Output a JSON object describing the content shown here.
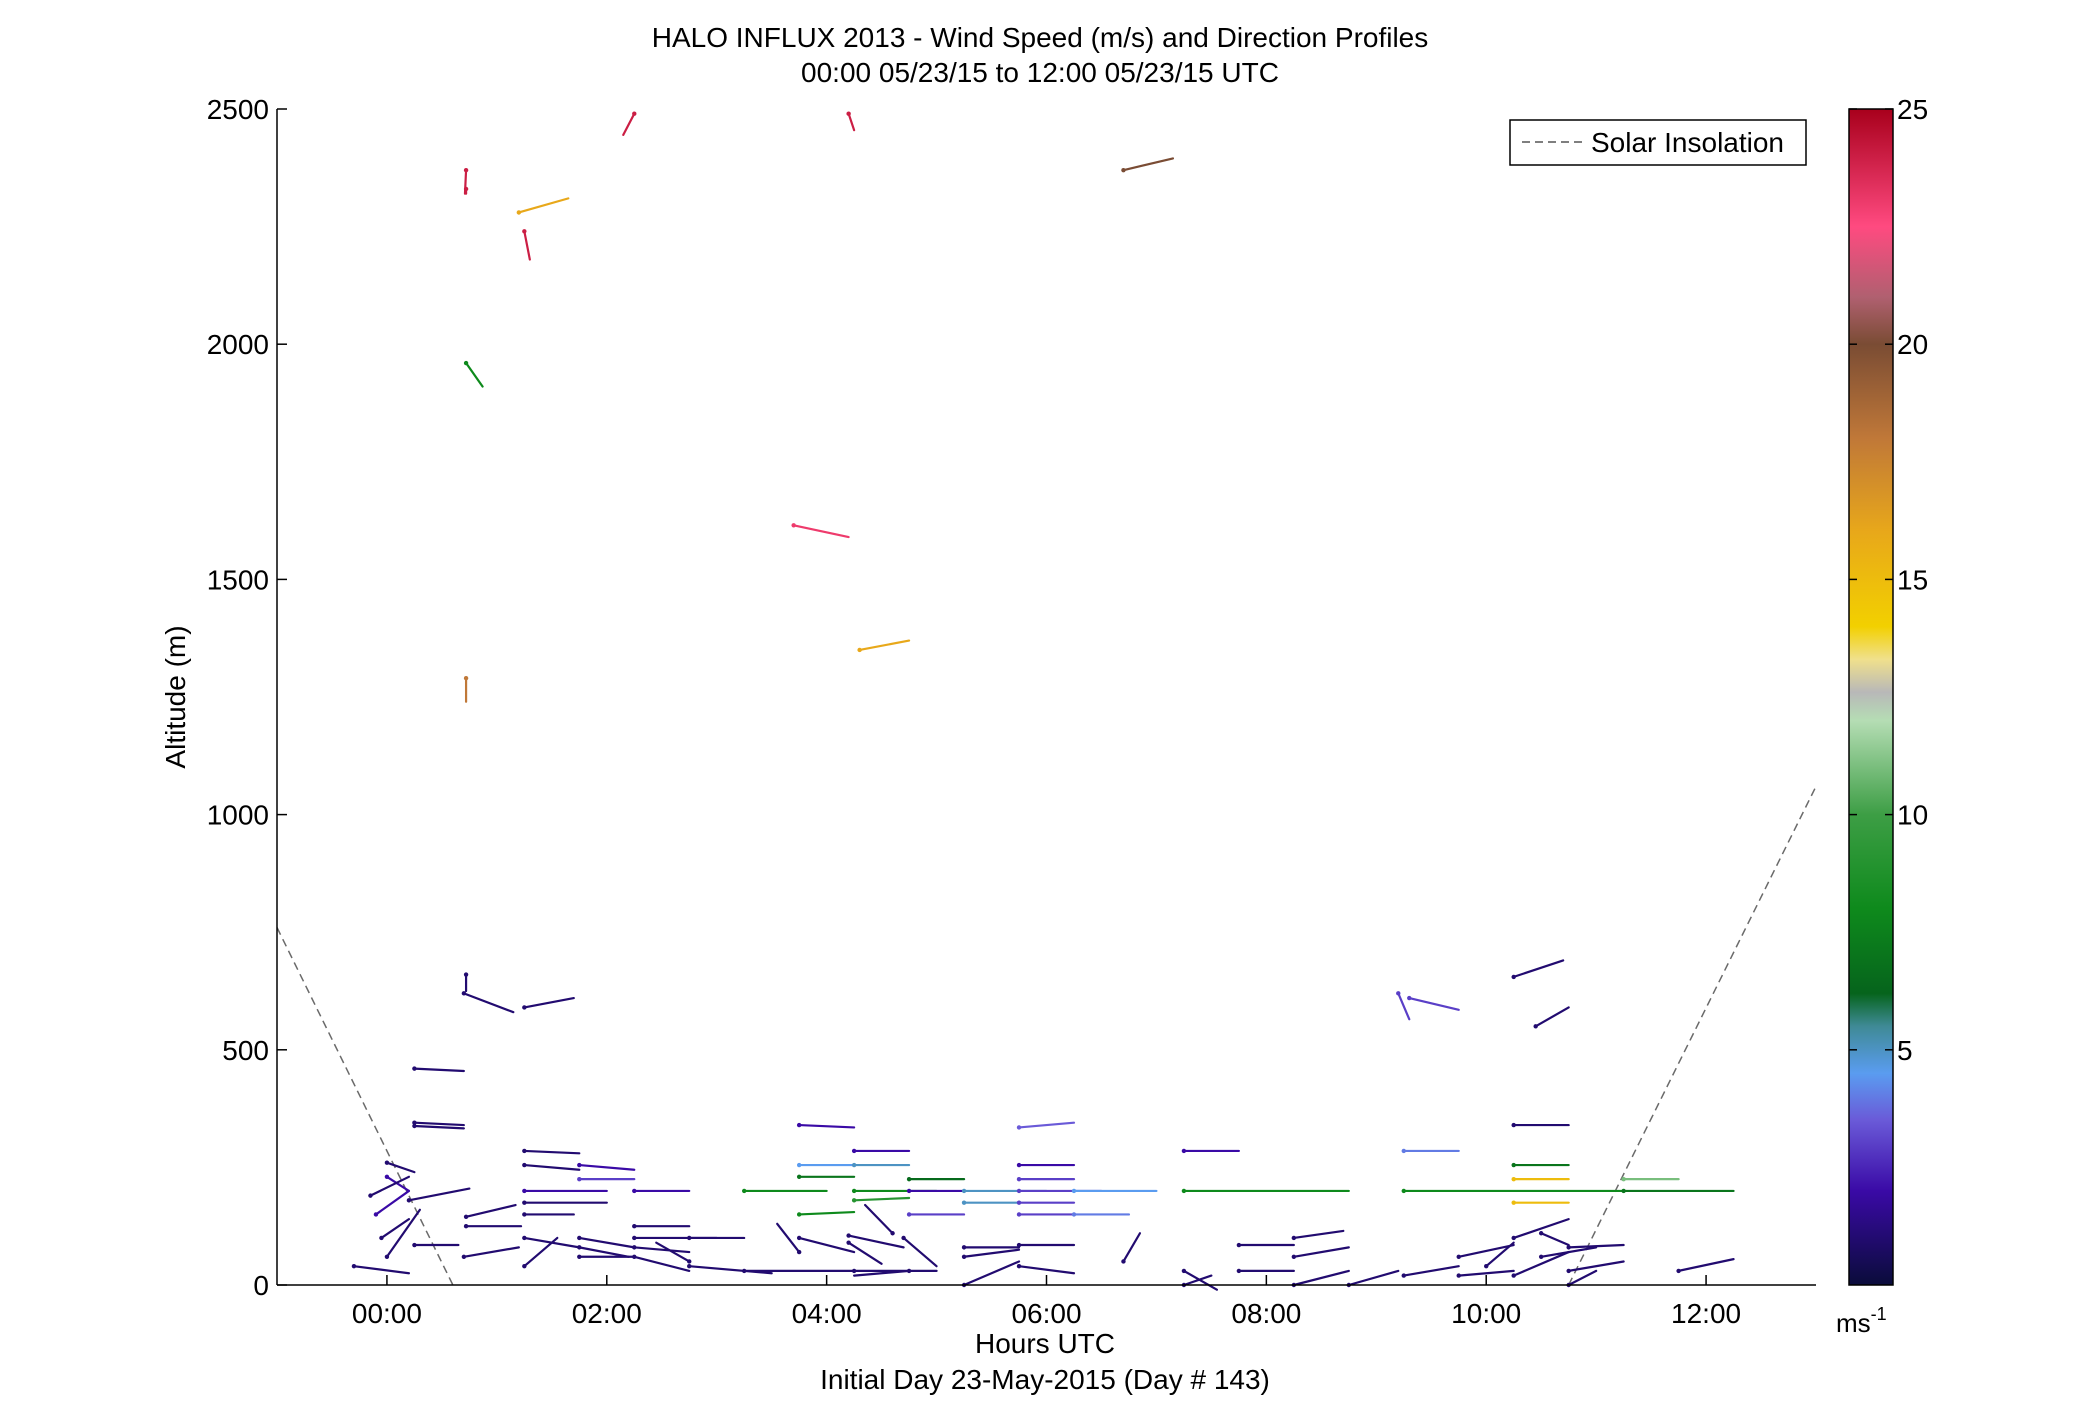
{
  "figure": {
    "title_line1": "HALO INFLUX 2013 - Wind Speed (m/s) and Direction Profiles",
    "title_line2": "00:00 05/23/15 to 12:00 05/23/15  UTC",
    "xlabel": "Hours UTC",
    "ylabel": "Altitude (m)",
    "footer": "Initial Day 23-May-2015 (Day # 143)",
    "legend_label": "Solar Insolation",
    "colorbar_unit_base": "ms",
    "colorbar_unit_exp": "-1"
  },
  "chart_data": {
    "type": "scatter",
    "title": "HALO INFLUX 2013 - Wind Speed (m/s) and Direction Profiles",
    "subtitle": "00:00 05/23/15 to 12:00 05/23/15  UTC",
    "xlabel": "Hours UTC",
    "ylabel": "Altitude (m)",
    "xlim": [
      -1,
      13
    ],
    "ylim": [
      0,
      2500
    ],
    "x_ticks": [
      0,
      2,
      4,
      6,
      8,
      10,
      12
    ],
    "x_tick_labels": [
      "00:00",
      "02:00",
      "04:00",
      "06:00",
      "08:00",
      "10:00",
      "12:00"
    ],
    "y_ticks": [
      0,
      500,
      1000,
      1500,
      2000,
      2500
    ],
    "y_tick_labels": [
      "0",
      "500",
      "1000",
      "1500",
      "2000",
      "2500"
    ],
    "grid": false,
    "legend": {
      "position": "top-right",
      "entries": [
        "Solar Insolation"
      ]
    },
    "colorbar": {
      "label": "ms-1",
      "range": [
        0,
        25
      ],
      "ticks": [
        5,
        10,
        15,
        20,
        25
      ],
      "tick_labels": [
        "5",
        "10",
        "15",
        "20",
        "25"
      ],
      "stops": [
        {
          "v": 0,
          "c": "#0a0c3a"
        },
        {
          "v": 2,
          "c": "#3a0aa6"
        },
        {
          "v": 3.5,
          "c": "#6a5ad8"
        },
        {
          "v": 4.5,
          "c": "#5a9cf0"
        },
        {
          "v": 5.5,
          "c": "#3f8a96"
        },
        {
          "v": 6.2,
          "c": "#06641c"
        },
        {
          "v": 8,
          "c": "#0e8a1c"
        },
        {
          "v": 10,
          "c": "#3d9e45"
        },
        {
          "v": 12,
          "c": "#b5ddb4"
        },
        {
          "v": 12.6,
          "c": "#b8b8b8"
        },
        {
          "v": 13.3,
          "c": "#f0e08c"
        },
        {
          "v": 14,
          "c": "#f2d000"
        },
        {
          "v": 16,
          "c": "#e8a81a"
        },
        {
          "v": 18,
          "c": "#c07838"
        },
        {
          "v": 20,
          "c": "#7a4c34"
        },
        {
          "v": 21,
          "c": "#b06070"
        },
        {
          "v": 22.5,
          "c": "#ff4a80"
        },
        {
          "v": 25,
          "c": "#a8001c"
        }
      ]
    },
    "solar_insolation_series": [
      {
        "x": [
          -1,
          0.6
        ],
        "y": [
          760,
          0
        ]
      },
      {
        "x": [
          10.75,
          13
        ],
        "y": [
          0,
          1060
        ]
      }
    ],
    "wind_vectors": {
      "fields": [
        "x_hour",
        "altitude_m",
        "speed_ms",
        "dx_hour",
        "dy_m"
      ],
      "rows": [
        [
          0.72,
          2370,
          24,
          -0.01,
          -50
        ],
        [
          0.72,
          2330,
          24,
          0.0,
          -10
        ],
        [
          1.25,
          2240,
          24,
          0.05,
          -60
        ],
        [
          2.25,
          2490,
          24,
          -0.1,
          -45
        ],
        [
          4.2,
          2490,
          24,
          0.05,
          -35
        ],
        [
          6.7,
          2370,
          20,
          0.45,
          25
        ],
        [
          1.2,
          2280,
          16,
          0.45,
          30
        ],
        [
          0.72,
          1960,
          8,
          0.15,
          -50
        ],
        [
          3.7,
          1615,
          23,
          0.5,
          -25
        ],
        [
          4.3,
          1350,
          16,
          0.45,
          20
        ],
        [
          0.72,
          1290,
          18,
          0.0,
          -50
        ],
        [
          0.7,
          620,
          1,
          0.45,
          -40
        ],
        [
          0.72,
          660,
          1,
          0.0,
          -35
        ],
        [
          1.25,
          590,
          1,
          0.45,
          20
        ],
        [
          0.25,
          460,
          1,
          0.45,
          -5
        ],
        [
          0.25,
          345,
          1,
          0.45,
          -5
        ],
        [
          0.25,
          338,
          1,
          0.45,
          -5
        ],
        [
          1.25,
          285,
          1,
          0.5,
          -5
        ],
        [
          1.25,
          255,
          1,
          0.5,
          -10
        ],
        [
          1.75,
          255,
          2,
          0.5,
          -10
        ],
        [
          1.75,
          225,
          3,
          0.5,
          0
        ],
        [
          1.25,
          200,
          2,
          0.75,
          0
        ],
        [
          2.25,
          200,
          2,
          0.5,
          0
        ],
        [
          0.72,
          145,
          1,
          0.45,
          25
        ],
        [
          0.72,
          125,
          1,
          0.5,
          0
        ],
        [
          1.25,
          175,
          1,
          0.75,
          0
        ],
        [
          1.25,
          150,
          1,
          0.45,
          0
        ],
        [
          2.25,
          125,
          1,
          0.5,
          0
        ],
        [
          2.25,
          100,
          1,
          0.75,
          0
        ],
        [
          0.0,
          260,
          1,
          0.25,
          -20
        ],
        [
          0.0,
          230,
          2,
          0.2,
          -30
        ],
        [
          -0.15,
          190,
          1,
          0.35,
          40
        ],
        [
          -0.1,
          150,
          2,
          0.3,
          50
        ],
        [
          -0.05,
          100,
          1,
          0.25,
          40
        ],
        [
          0.0,
          60,
          1,
          0.3,
          100
        ],
        [
          0.2,
          180,
          1,
          0.55,
          25
        ],
        [
          0.25,
          85,
          1,
          0.4,
          0
        ],
        [
          0.7,
          60,
          1,
          0.5,
          20
        ],
        [
          -0.3,
          40,
          1,
          0.5,
          -15
        ],
        [
          1.25,
          100,
          1,
          0.5,
          -20
        ],
        [
          1.75,
          80,
          1,
          0.45,
          -20
        ],
        [
          1.75,
          100,
          1,
          0.5,
          -20
        ],
        [
          2.25,
          80,
          1,
          0.5,
          -10
        ],
        [
          2.25,
          60,
          1,
          0.5,
          -30
        ],
        [
          2.75,
          50,
          1,
          -0.3,
          40
        ],
        [
          2.75,
          100,
          1,
          0.5,
          0
        ],
        [
          1.75,
          60,
          1,
          0.5,
          0
        ],
        [
          1.25,
          40,
          1,
          0.3,
          60
        ],
        [
          3.75,
          100,
          1,
          0.5,
          -30
        ],
        [
          3.75,
          70,
          1,
          -0.2,
          60
        ],
        [
          4.2,
          105,
          1,
          0.5,
          -25
        ],
        [
          4.2,
          90,
          1,
          0.3,
          -45
        ],
        [
          4.6,
          110,
          1,
          -0.25,
          60
        ],
        [
          4.7,
          100,
          1,
          0.3,
          -60
        ],
        [
          3.25,
          30,
          1,
          1.0,
          0
        ],
        [
          4.25,
          30,
          1,
          0.75,
          0
        ],
        [
          2.75,
          40,
          1,
          0.75,
          -15
        ],
        [
          4.75,
          30,
          1,
          -0.5,
          -10
        ],
        [
          5.25,
          60,
          1,
          0.5,
          15
        ],
        [
          5.75,
          40,
          1,
          0.5,
          -15
        ],
        [
          5.25,
          80,
          1,
          0.5,
          0
        ],
        [
          5.75,
          85,
          1,
          0.5,
          0
        ],
        [
          5.25,
          0,
          1,
          0.5,
          50
        ],
        [
          6.7,
          50,
          1,
          0.15,
          60
        ],
        [
          7.25,
          30,
          1,
          0.3,
          -40
        ],
        [
          7.25,
          0,
          1,
          0.25,
          20
        ],
        [
          7.75,
          85,
          1,
          0.5,
          0
        ],
        [
          7.75,
          30,
          1,
          0.5,
          0
        ],
        [
          8.25,
          100,
          1,
          0.45,
          15
        ],
        [
          8.25,
          60,
          1,
          0.5,
          20
        ],
        [
          8.25,
          0,
          1,
          0.5,
          30
        ],
        [
          8.75,
          0,
          1,
          0.45,
          30
        ],
        [
          9.25,
          20,
          1,
          0.5,
          20
        ],
        [
          9.75,
          20,
          1,
          0.5,
          10
        ],
        [
          9.75,
          60,
          1,
          0.5,
          25
        ],
        [
          10.0,
          40,
          1,
          0.25,
          50
        ],
        [
          10.25,
          100,
          1,
          0.5,
          40
        ],
        [
          10.25,
          20,
          1,
          0.5,
          50
        ],
        [
          10.75,
          80,
          1,
          0.5,
          5
        ],
        [
          10.75,
          30,
          1,
          0.5,
          20
        ],
        [
          10.75,
          0,
          1,
          0.25,
          30
        ],
        [
          10.5,
          110,
          1,
          0.25,
          -25
        ],
        [
          10.5,
          60,
          1,
          0.5,
          20
        ],
        [
          11.75,
          30,
          1,
          0.5,
          25
        ],
        [
          10.25,
          655,
          1,
          0.45,
          35
        ],
        [
          10.45,
          550,
          1,
          0.3,
          40
        ],
        [
          9.2,
          620,
          3,
          0.1,
          -55
        ],
        [
          9.3,
          610,
          3,
          0.45,
          -25
        ],
        [
          3.75,
          340,
          2,
          0.5,
          -5
        ],
        [
          4.25,
          285,
          2,
          0.5,
          0
        ],
        [
          3.75,
          255,
          4.5,
          0.5,
          0
        ],
        [
          4.25,
          255,
          5,
          0.5,
          0
        ],
        [
          3.75,
          230,
          7,
          0.5,
          0
        ],
        [
          4.75,
          225,
          6.5,
          0.5,
          0
        ],
        [
          3.25,
          200,
          8,
          0.75,
          0
        ],
        [
          4.25,
          200,
          8,
          0.75,
          0
        ],
        [
          4.25,
          180,
          9,
          0.5,
          5
        ],
        [
          3.75,
          150,
          8,
          0.5,
          5
        ],
        [
          4.75,
          150,
          3,
          0.5,
          0
        ],
        [
          4.75,
          200,
          2,
          0.5,
          0
        ],
        [
          5.25,
          200,
          5,
          0.75,
          0
        ],
        [
          5.25,
          175,
          5,
          0.5,
          0
        ],
        [
          5.75,
          200,
          3,
          0.75,
          0
        ],
        [
          5.75,
          175,
          3,
          0.5,
          0
        ],
        [
          5.75,
          150,
          3,
          0.5,
          0
        ],
        [
          6.25,
          150,
          4,
          0.5,
          0
        ],
        [
          6.25,
          200,
          4.5,
          0.75,
          0
        ],
        [
          5.75,
          255,
          2,
          0.5,
          0
        ],
        [
          5.75,
          225,
          3,
          0.5,
          0
        ],
        [
          5.75,
          335,
          3.5,
          0.5,
          10
        ],
        [
          7.25,
          285,
          2,
          0.5,
          0
        ],
        [
          7.25,
          200,
          8,
          1.5,
          0
        ],
        [
          9.25,
          285,
          4,
          0.5,
          0
        ],
        [
          9.25,
          200,
          8,
          2.0,
          0
        ],
        [
          10.25,
          340,
          1,
          0.5,
          0
        ],
        [
          10.25,
          255,
          7,
          0.5,
          0
        ],
        [
          10.25,
          225,
          15,
          0.5,
          0
        ],
        [
          10.25,
          175,
          15,
          0.5,
          0
        ],
        [
          11.25,
          225,
          11,
          0.5,
          0
        ],
        [
          11.25,
          200,
          7,
          1.0,
          0
        ]
      ]
    }
  }
}
